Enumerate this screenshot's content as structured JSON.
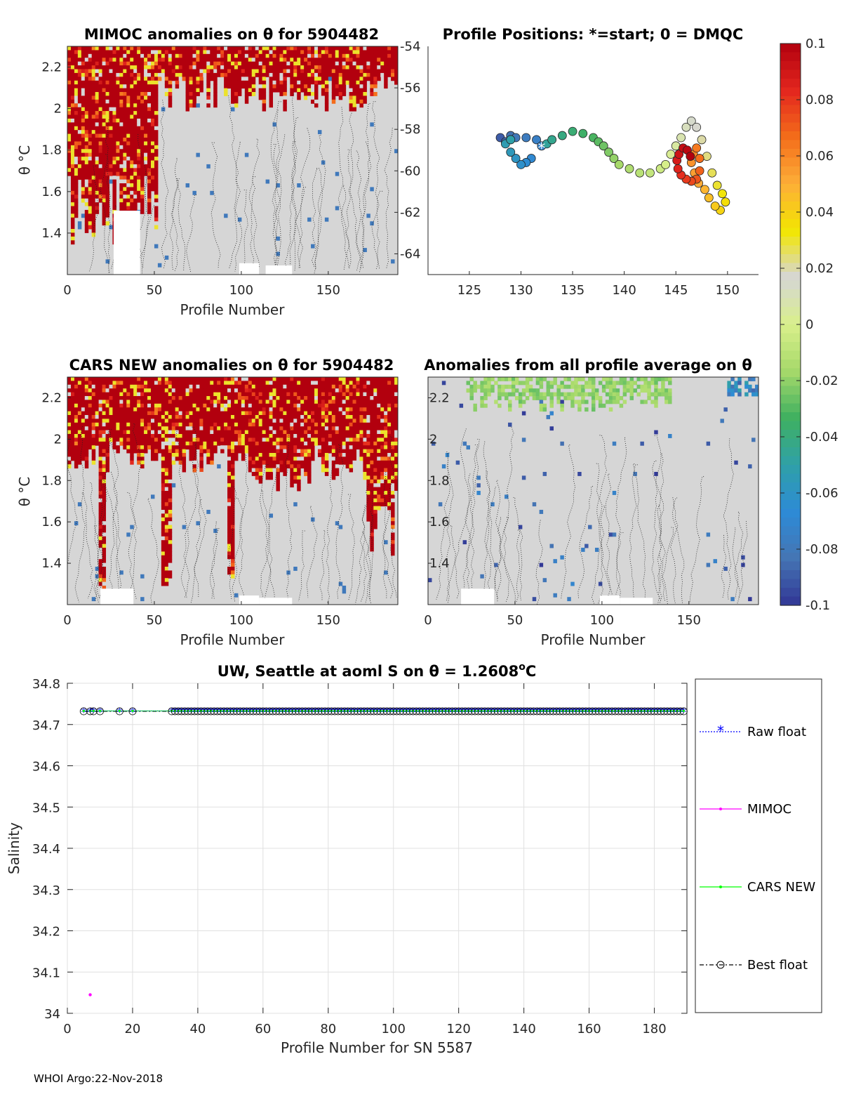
{
  "colors": {
    "raw_float": "#0000ff",
    "mimoc": "#ff00ff",
    "cars_new": "#00ff00",
    "best_float": "#000000",
    "anom_gray": "#d6d6d6",
    "anom_red": "#b2000e"
  },
  "colorbar": {
    "ticks": [
      "0.1",
      "0.08",
      "0.06",
      "0.04",
      "0.02",
      "0",
      "-0.02",
      "-0.04",
      "-0.06",
      "-0.08",
      "-0.1"
    ],
    "min": -0.1,
    "max": 0.1,
    "stops": [
      "#313695",
      "#4575b4",
      "#2d8bd6",
      "#2fa0a8",
      "#3fb060",
      "#a6d96a",
      "#d9ef8b",
      "#d6d6d6",
      "#f2e600",
      "#fdae38",
      "#f46d1a",
      "#e3261e",
      "#b2000e"
    ]
  },
  "chart_data": [
    {
      "id": "mimoc",
      "type": "heatmap",
      "title": "MIMOC anomalies on θ  for 5904482",
      "xlabel": "Profile Number",
      "ylabel": "θ °C",
      "xlim": [
        0,
        190
      ],
      "ylim": [
        1.2,
        2.3
      ],
      "xticks": [
        "0",
        "50",
        "100",
        "150"
      ],
      "yticks": [
        "2.2",
        "2",
        "1.8",
        "1.6",
        "1.4"
      ],
      "right_ticks": [
        "-54",
        "-56",
        "-58",
        "-60",
        "-62",
        "-64"
      ]
    },
    {
      "id": "positions",
      "type": "scatter",
      "title": "Profile Positions: *=start; 0 = DMQC",
      "xlim": [
        121,
        153
      ],
      "ylim": [
        -65,
        -54
      ],
      "xticks": [
        "125",
        "130",
        "135",
        "140",
        "145",
        "150"
      ],
      "start_marker": [
        132,
        -58.9
      ],
      "track": [
        [
          128,
          -58.4
        ],
        [
          128.5,
          -58.6
        ],
        [
          129,
          -58.3
        ],
        [
          129.5,
          -58.4
        ],
        [
          130.5,
          -58.4
        ],
        [
          131.5,
          -58.5
        ],
        [
          132,
          -58.8
        ],
        [
          131,
          -59.4
        ],
        [
          130.5,
          -59.6
        ],
        [
          130,
          -59.7
        ],
        [
          129.5,
          -59.4
        ],
        [
          129,
          -59.1
        ],
        [
          128.5,
          -58.7
        ],
        [
          129,
          -58.5
        ],
        [
          132.5,
          -58.7
        ],
        [
          133,
          -58.5
        ],
        [
          134,
          -58.3
        ],
        [
          135,
          -58.1
        ],
        [
          136,
          -58.2
        ],
        [
          137,
          -58.4
        ],
        [
          137.5,
          -58.6
        ],
        [
          138,
          -58.8
        ],
        [
          138.5,
          -59.1
        ],
        [
          139,
          -59.4
        ],
        [
          139.5,
          -59.7
        ],
        [
          140.5,
          -59.9
        ],
        [
          141.5,
          -60.1
        ],
        [
          142.5,
          -60.1
        ],
        [
          143.5,
          -59.9
        ],
        [
          144,
          -59.7
        ],
        [
          144.5,
          -59.2
        ],
        [
          145,
          -58.8
        ],
        [
          145.5,
          -58.4
        ],
        [
          146,
          -57.9
        ],
        [
          146.5,
          -57.6
        ],
        [
          147,
          -57.9
        ],
        [
          147.5,
          -58.5
        ],
        [
          148,
          -59.3
        ],
        [
          148.5,
          -60.1
        ],
        [
          149,
          -60.7
        ],
        [
          149.5,
          -61.1
        ],
        [
          149.8,
          -61.5
        ],
        [
          149.3,
          -61.9
        ],
        [
          148.8,
          -61.7
        ],
        [
          148.2,
          -61.3
        ],
        [
          147.8,
          -60.9
        ],
        [
          147.2,
          -60.6
        ],
        [
          146.8,
          -60.1
        ],
        [
          146.5,
          -59.6
        ],
        [
          146.7,
          -59.2
        ],
        [
          147,
          -58.9
        ],
        [
          147.3,
          -59.4
        ],
        [
          147.3,
          -60.0
        ],
        [
          147,
          -60.4
        ],
        [
          146.5,
          -60.5
        ],
        [
          146,
          -60.4
        ],
        [
          145.5,
          -60.2
        ],
        [
          145.2,
          -59.9
        ],
        [
          145.1,
          -59.5
        ],
        [
          145.3,
          -59.2
        ],
        [
          145.7,
          -58.9
        ],
        [
          146.1,
          -59.0
        ],
        [
          146.4,
          -59.3
        ]
      ]
    },
    {
      "id": "cars",
      "type": "heatmap",
      "title": "CARS NEW anomalies on θ for 5904482",
      "xlabel": "Profile Number",
      "ylabel": "θ °C",
      "xlim": [
        0,
        190
      ],
      "ylim": [
        1.2,
        2.3
      ],
      "xticks": [
        "0",
        "50",
        "100",
        "150"
      ],
      "yticks": [
        "2.2",
        "2",
        "1.8",
        "1.6",
        "1.4"
      ]
    },
    {
      "id": "avg",
      "type": "heatmap",
      "title": "Anomalies from all profile average on θ",
      "xlabel": "Profile Number",
      "xlim": [
        0,
        190
      ],
      "ylim": [
        1.2,
        2.3
      ],
      "xticks": [
        "0",
        "50",
        "100",
        "150"
      ],
      "yticks": [
        "2.2",
        "2",
        "1.8",
        "1.6",
        "1.4"
      ]
    },
    {
      "id": "salinity",
      "type": "line",
      "title_prefix": "UW, Seattle at aoml S on θ = 1.2608",
      "title_sup": "o",
      "title_suffix": "C",
      "xlabel": "Profile Number for SN 5587",
      "ylabel": "Salinity",
      "xlim": [
        0,
        190
      ],
      "ylim": [
        34.0,
        34.8
      ],
      "xticks": [
        "0",
        "20",
        "40",
        "60",
        "80",
        "100",
        "120",
        "140",
        "160",
        "180"
      ],
      "yticks": [
        "34.8",
        "34.7",
        "34.6",
        "34.5",
        "34.4",
        "34.3",
        "34.2",
        "34.1",
        "34"
      ],
      "grid": true,
      "legend_position": "outside-right",
      "series": [
        {
          "name": "Raw float",
          "value": 34.733,
          "profiles_start": [
            5,
            7,
            8,
            10,
            16,
            20
          ],
          "profiles_range": [
            32,
            189
          ]
        },
        {
          "name": "MIMOC",
          "points": [
            [
              7,
              34.045
            ]
          ]
        },
        {
          "name": "CARS NEW",
          "value": 34.733,
          "profiles_start": [
            5,
            7,
            8,
            10,
            16,
            20
          ],
          "profiles_range": [
            32,
            189
          ]
        },
        {
          "name": "Best float",
          "value": 34.732,
          "profiles_start": [
            5,
            7,
            8,
            10,
            16,
            20
          ],
          "profiles_range": [
            32,
            189
          ]
        }
      ]
    }
  ],
  "footer": "WHOI Argo:22-Nov-2018"
}
